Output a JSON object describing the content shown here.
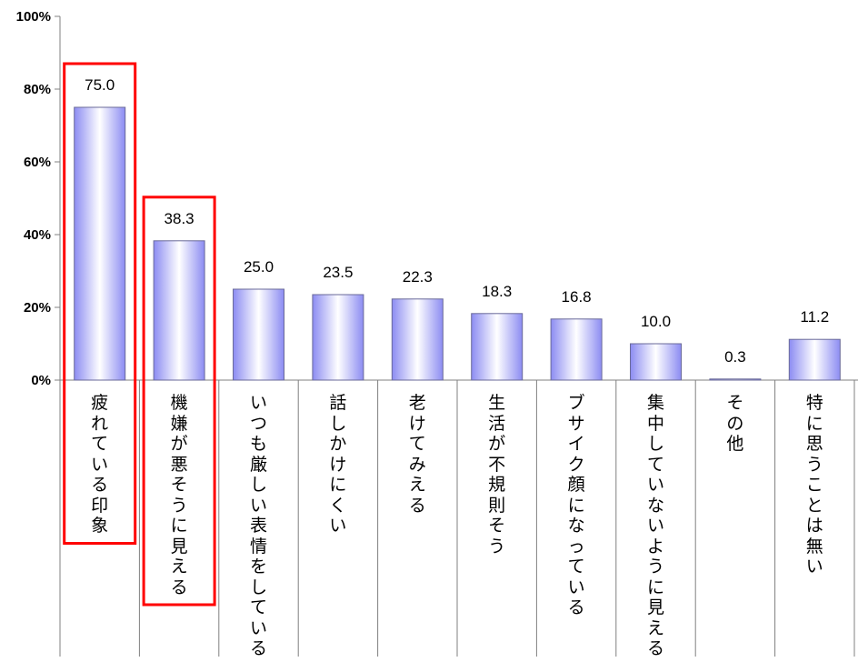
{
  "chart_data": {
    "type": "bar",
    "categories": [
      "疲れている印象",
      "機嫌が悪そうに見える",
      "いつも厳しい表情をしている",
      "話しかけにくい",
      "老けてみえる",
      "生活が不規則そう",
      "ブサイク顔になっている",
      "集中していないように見える",
      "その他",
      "特に思うことは無い"
    ],
    "values": [
      75.0,
      38.3,
      25.0,
      23.5,
      22.3,
      18.3,
      16.8,
      10.0,
      0.3,
      11.2
    ],
    "value_labels": [
      "75.0",
      "38.3",
      "25.0",
      "23.5",
      "22.3",
      "18.3",
      "16.8",
      "10.0",
      "0.3",
      "11.2"
    ],
    "ylim": [
      0,
      100
    ],
    "yticks": [
      "0%",
      "20%",
      "40%",
      "60%",
      "80%",
      "100%"
    ],
    "grid": false,
    "highlighted_categories": [
      "疲れている印象",
      "機嫌が悪そうに見える"
    ],
    "colors": {
      "bar_light": "#ffffff",
      "bar_dark": "#8c8cf2",
      "bar_edge": "#6a6a9a",
      "highlight_box": "#ff0000",
      "axis": "#808080"
    }
  }
}
